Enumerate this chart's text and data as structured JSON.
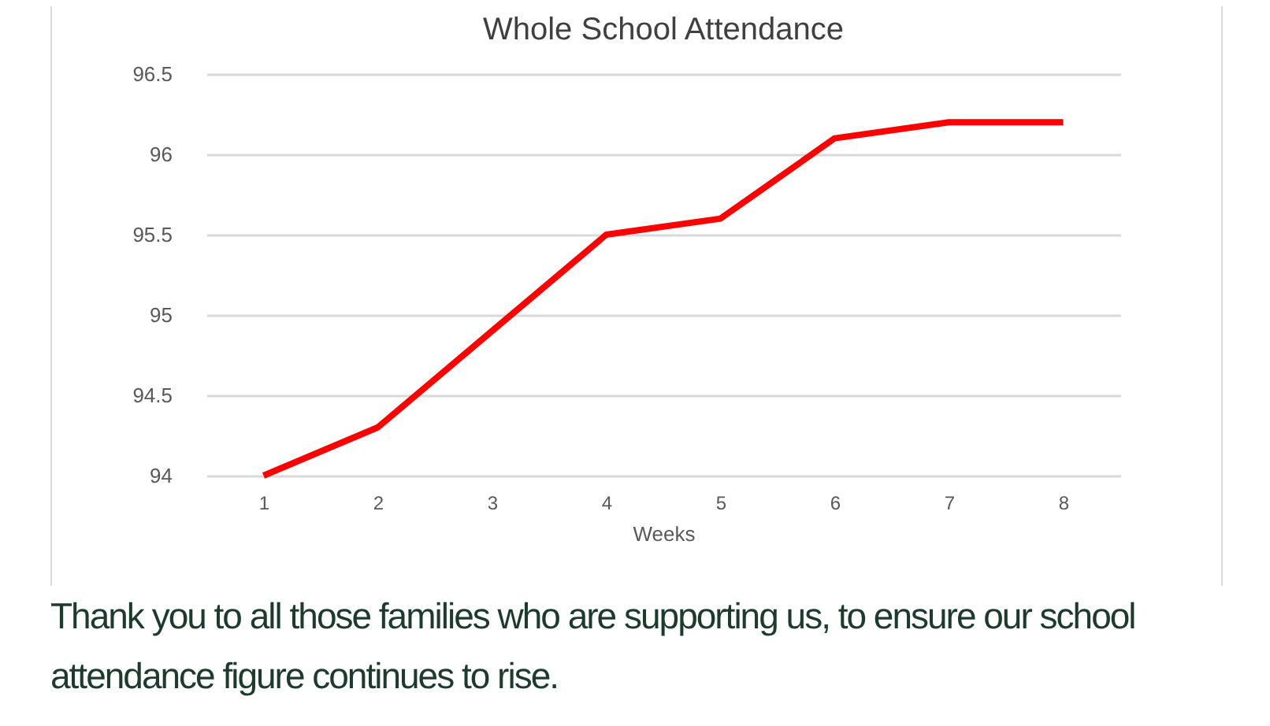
{
  "chart_data": {
    "type": "line",
    "title": "Whole School Attendance",
    "xlabel": "Weeks",
    "categories": [
      "1",
      "2",
      "3",
      "4",
      "5",
      "6",
      "7",
      "8"
    ],
    "series": [
      {
        "color": "#ff0000",
        "values": [
          94.0,
          94.3,
          94.9,
          95.5,
          95.6,
          96.1,
          96.2,
          96.2
        ]
      }
    ],
    "ylim": [
      94,
      96.5
    ],
    "yticks": [
      94,
      94.5,
      95,
      95.5,
      96,
      96.5
    ],
    "grid": "y",
    "marker": "none",
    "line_style": "solid",
    "annotations": [
      "Thank you to all those families who are supporting us, to ensure our school attendance figure continues to rise."
    ]
  }
}
